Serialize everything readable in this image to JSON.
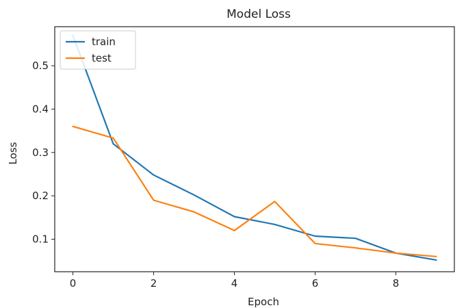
{
  "chart_data": {
    "type": "line",
    "title": "Model Loss",
    "xlabel": "Epoch",
    "ylabel": "Loss",
    "xlim": [
      -0.45,
      9.45
    ],
    "ylim": [
      0.025,
      0.59
    ],
    "xticks": [
      0,
      2,
      4,
      6,
      8
    ],
    "yticks": [
      0.1,
      0.2,
      0.3,
      0.4,
      0.5
    ],
    "xtick_labels": [
      "0",
      "2",
      "4",
      "6",
      "8"
    ],
    "ytick_labels": [
      "0.1",
      "0.2",
      "0.3",
      "0.4",
      "0.5"
    ],
    "grid": false,
    "legend_position": "top-left",
    "x": [
      0,
      1,
      2,
      3,
      4,
      5,
      6,
      7,
      8,
      9
    ],
    "series": [
      {
        "name": "train",
        "color": "#1f77b4",
        "values": [
          0.57,
          0.32,
          0.248,
          0.202,
          0.152,
          0.134,
          0.107,
          0.102,
          0.068,
          0.052
        ]
      },
      {
        "name": "test",
        "color": "#ff7f0e",
        "values": [
          0.36,
          0.333,
          0.19,
          0.163,
          0.12,
          0.187,
          0.09,
          0.08,
          0.068,
          0.06
        ]
      }
    ]
  }
}
